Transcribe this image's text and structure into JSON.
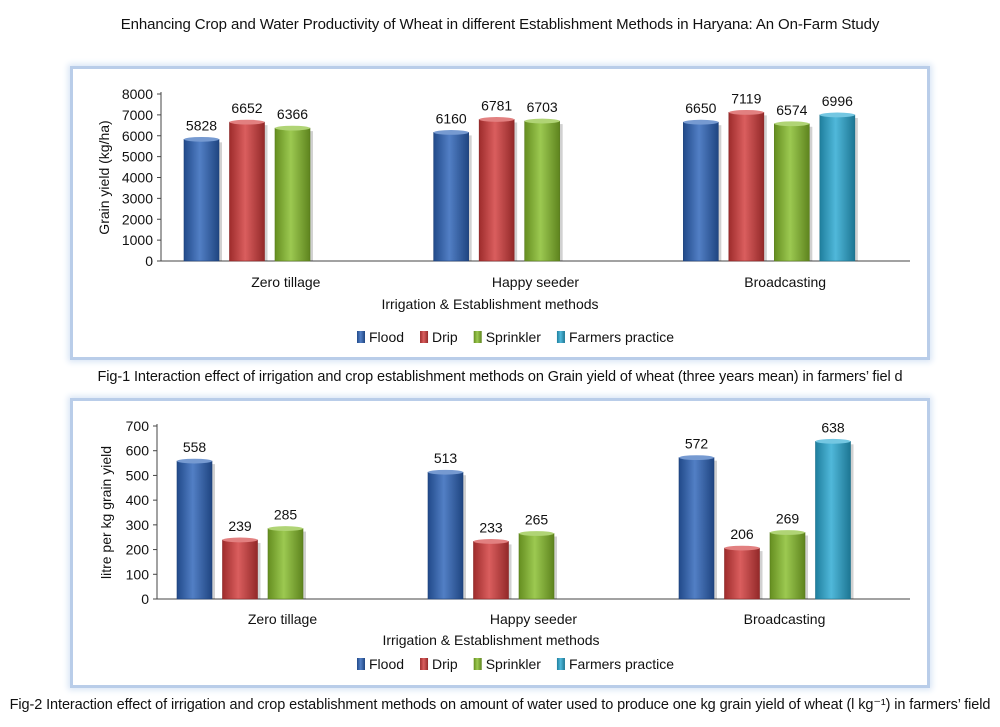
{
  "page": {
    "title": "Enhancing Crop and Water Productivity of Wheat in different Establishment Methods in Haryana: An On-Farm Study",
    "caption1": "Fig-1 Interaction effect of irrigation and crop establishment methods on Grain yield of wheat (three years mean) in farmers’ fiel d",
    "caption2": "Fig-2 Interaction effect of irrigation and crop establishment methods on amount of water used to produce one kg grain yield of wheat (l kg⁻¹) in farmers’ field"
  },
  "colors": {
    "Flood": "#2c63b8",
    "Drip": "#d23b3b",
    "Sprinkler": "#86bd2b",
    "Farmers practice": "#29a9d2"
  },
  "chart_data": [
    {
      "type": "bar",
      "title": "",
      "xlabel": "Irrigation & Establishment methods",
      "ylabel": "Grain yield (kg/ha)",
      "ylim": [
        0,
        8000
      ],
      "yticks": [
        0,
        1000,
        2000,
        3000,
        4000,
        5000,
        6000,
        7000,
        8000
      ],
      "grid": false,
      "legend": "bottom",
      "categories": [
        "Zero tillage",
        "Happy seeder",
        "Broadcasting"
      ],
      "series": [
        {
          "name": "Flood",
          "values": [
            5828,
            6160,
            6650
          ]
        },
        {
          "name": "Drip",
          "values": [
            6652,
            6781,
            7119
          ]
        },
        {
          "name": "Sprinkler",
          "values": [
            6366,
            6703,
            6574
          ]
        },
        {
          "name": "Farmers practice",
          "values": [
            null,
            null,
            6996
          ]
        }
      ]
    },
    {
      "type": "bar",
      "title": "",
      "xlabel": "Irrigation & Establishment methods",
      "ylabel": "litre per kg grain yield",
      "ylim": [
        0,
        700
      ],
      "yticks": [
        0,
        100,
        200,
        300,
        400,
        500,
        600,
        700
      ],
      "grid": false,
      "legend": "bottom",
      "categories": [
        "Zero tillage",
        "Happy seeder",
        "Broadcasting"
      ],
      "series": [
        {
          "name": "Flood",
          "values": [
            558,
            513,
            572
          ]
        },
        {
          "name": "Drip",
          "values": [
            239,
            233,
            206
          ]
        },
        {
          "name": "Sprinkler",
          "values": [
            285,
            265,
            269
          ]
        },
        {
          "name": "Farmers practice",
          "values": [
            null,
            null,
            638
          ]
        }
      ]
    }
  ]
}
